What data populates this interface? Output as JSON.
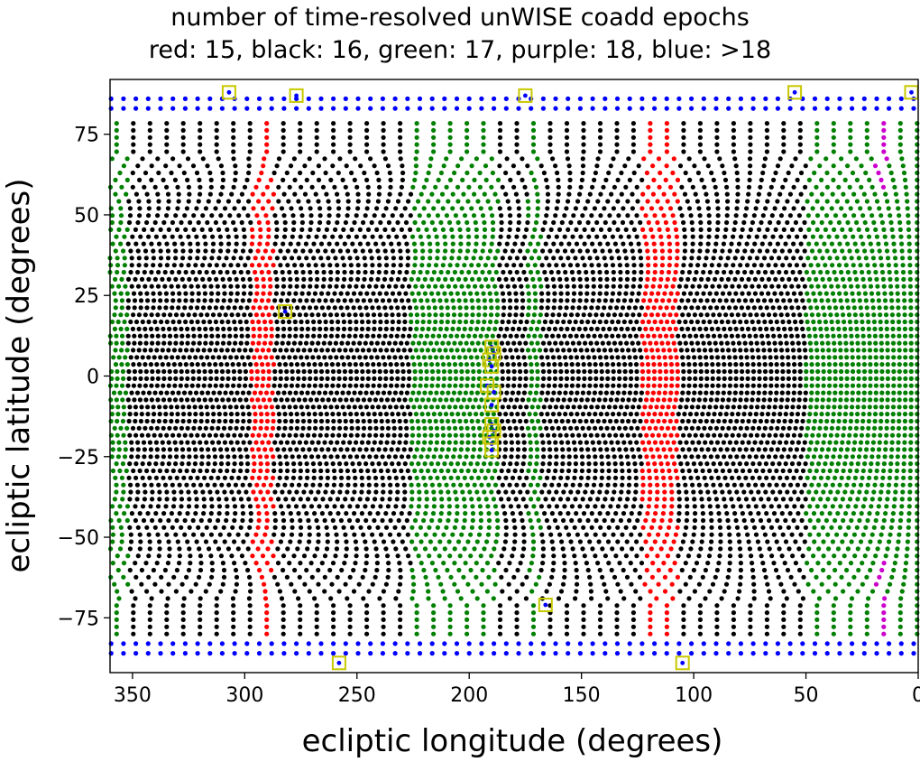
{
  "chart_data": {
    "type": "scatter",
    "title": "number of time-resolved unWISE coadd epochs",
    "subtitle": "red: 15, black: 16, green: 17, purple: 18, blue: >18",
    "xlabel": "ecliptic longitude (degrees)",
    "ylabel": "ecliptic latitude (degrees)",
    "xlim": [
      360,
      0
    ],
    "ylim": [
      -92,
      92
    ],
    "x_inverted": true,
    "xticks": [
      350,
      300,
      250,
      200,
      150,
      100,
      50,
      0
    ],
    "yticks": [
      75,
      50,
      25,
      0,
      -25,
      -50,
      -75
    ],
    "grid": false,
    "colors": {
      "15": "#ff0000",
      "16": "#000000",
      "17": "#008000",
      "18": "#cc00cc",
      "gt18": "#0000ff",
      "marker": "#c8c800"
    },
    "epoch_bands": [
      {
        "epochs": "17",
        "lon_range": [
          360,
          352
        ]
      },
      {
        "epochs": "16",
        "lon_range": [
          352,
          297
        ]
      },
      {
        "epochs": "15",
        "lon_range": [
          297,
          287
        ]
      },
      {
        "epochs": "16",
        "lon_range": [
          287,
          226
        ]
      },
      {
        "epochs": "17",
        "lon_range": [
          226,
          187
        ]
      },
      {
        "epochs": "16",
        "lon_range": [
          187,
          174
        ]
      },
      {
        "epochs": "17",
        "lon_range": [
          174,
          168
        ]
      },
      {
        "epochs": "16",
        "lon_range": [
          168,
          123
        ]
      },
      {
        "epochs": "15",
        "lon_range": [
          123,
          107
        ]
      },
      {
        "epochs": "16",
        "lon_range": [
          107,
          50
        ]
      },
      {
        "epochs": "17",
        "lon_range": [
          50,
          0
        ]
      }
    ],
    "highlighted_fields": [
      {
        "lon": 307,
        "lat": 88
      },
      {
        "lon": 277,
        "lat": 87
      },
      {
        "lon": 175,
        "lat": 87
      },
      {
        "lon": 55,
        "lat": 88
      },
      {
        "lon": 3,
        "lat": 88
      },
      {
        "lon": 282,
        "lat": 20
      },
      {
        "lon": 190,
        "lat": 9
      },
      {
        "lon": 189,
        "lat": 7
      },
      {
        "lon": 191,
        "lat": 5
      },
      {
        "lon": 190,
        "lat": 3
      },
      {
        "lon": 192,
        "lat": -3
      },
      {
        "lon": 189,
        "lat": -5
      },
      {
        "lon": 190,
        "lat": -9
      },
      {
        "lon": 190,
        "lat": -15
      },
      {
        "lon": 189,
        "lat": -17
      },
      {
        "lon": 191,
        "lat": -19
      },
      {
        "lon": 190,
        "lat": -21
      },
      {
        "lon": 190,
        "lat": -23
      },
      {
        "lon": 166,
        "lat": -71
      },
      {
        "lon": 258,
        "lat": -89
      },
      {
        "lon": 105,
        "lat": -89
      }
    ]
  }
}
